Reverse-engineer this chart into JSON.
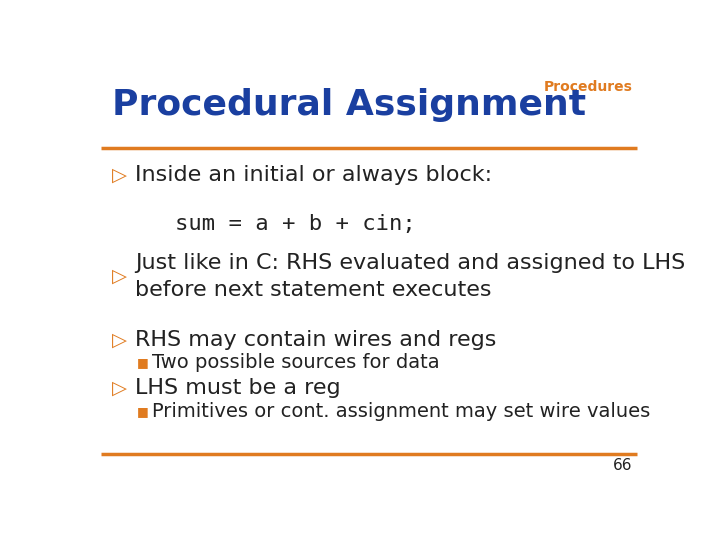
{
  "title": "Procedural Assignment",
  "title_color": "#1a3fa0",
  "title_fontsize": 26,
  "header_label": "Procedures",
  "header_color": "#e07b20",
  "header_fontsize": 10,
  "line_color": "#e07b20",
  "background_color": "#ffffff",
  "bullet_color": "#e07b20",
  "text_color": "#222222",
  "bullet_fontsize": 16,
  "sub_bullet_fontsize": 14,
  "code_fontsize": 16,
  "page_number": "66",
  "bullets": [
    {
      "type": "main",
      "text": "Inside an initial or always block:"
    },
    {
      "type": "code",
      "text": "sum = a + b + cin;"
    },
    {
      "type": "main",
      "text": "Just like in C: RHS evaluated and assigned to LHS\nbefore next statement executes"
    },
    {
      "type": "main",
      "text": "RHS may contain wires and regs"
    },
    {
      "type": "sub",
      "text": "Two possible sources for data"
    },
    {
      "type": "main",
      "text": "LHS must be a reg"
    },
    {
      "type": "sub",
      "text": "Primitives or cont. assignment may set wire values"
    }
  ]
}
